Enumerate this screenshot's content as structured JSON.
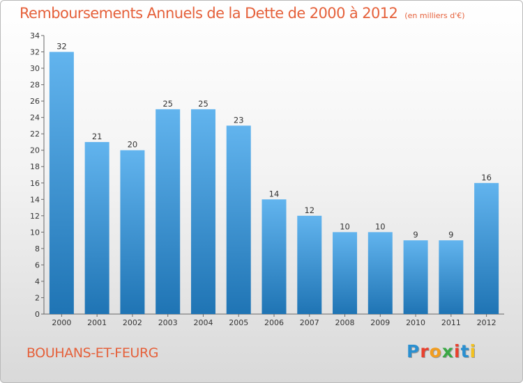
{
  "title": "Remboursements Annuels de la Dette de 2000 à 2012",
  "subtitle": "(en milliers d'€)",
  "commune": "BOUHANS-ET-FEURG",
  "logo": {
    "letters": [
      "P",
      "r",
      "o",
      "x",
      "i",
      "t",
      "i"
    ],
    "colors": [
      "#2a8fd0",
      "#e8402e",
      "#f29d1f",
      "#3aa845",
      "#e8402e",
      "#2a8fd0",
      "#f2c11f"
    ]
  },
  "colors": {
    "bar_light": "#62b4ee",
    "bar_dark": "#1f74b4",
    "accent": "#e5603a"
  },
  "chart_data": {
    "type": "bar",
    "categories": [
      "2000",
      "2001",
      "2002",
      "2003",
      "2004",
      "2005",
      "2006",
      "2007",
      "2008",
      "2009",
      "2010",
      "2011",
      "2012"
    ],
    "values": [
      32,
      21,
      20,
      25,
      25,
      23,
      14,
      12,
      10,
      10,
      9,
      9,
      16
    ],
    "ylim": [
      0,
      34
    ],
    "yticks": [
      0,
      2,
      4,
      6,
      8,
      10,
      12,
      14,
      16,
      18,
      20,
      22,
      24,
      26,
      28,
      30,
      32,
      34
    ],
    "grid": false,
    "data_labels": true
  }
}
